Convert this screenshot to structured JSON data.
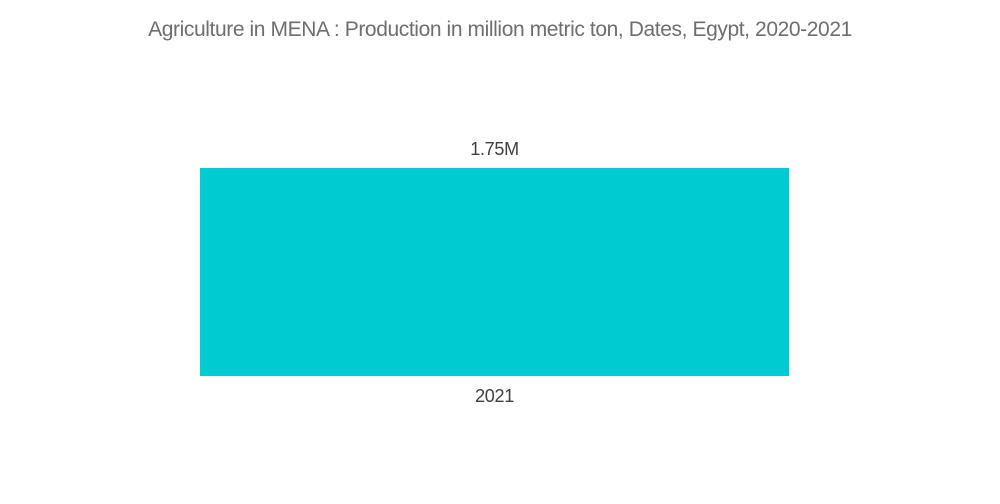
{
  "title": "Agriculture in MENA : Production in million metric ton, Dates, Egypt, 2020-2021",
  "colors": {
    "background": "#FFFFFF",
    "bar": "#00CBD1",
    "title_text": "#6E6E6E",
    "label_text": "#3F3F3F"
  },
  "chart_data": {
    "type": "bar",
    "title": "Agriculture in MENA : Production in million metric ton, Dates, Egypt, 2020-2021",
    "categories": [
      "2021"
    ],
    "values": [
      1.75
    ],
    "value_labels": [
      "1.75M"
    ],
    "unit": "million metric ton",
    "series_name": "Production",
    "xlabel": "",
    "ylabel": "",
    "ylim": [
      0,
      1.75
    ],
    "grid": false,
    "legend": false,
    "axes_visible": false,
    "orientation": "vertical"
  }
}
